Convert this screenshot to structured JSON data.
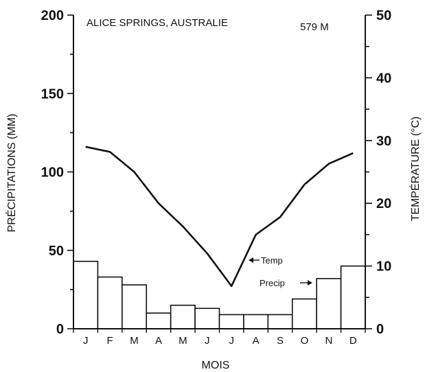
{
  "chart_data": {
    "type": "bar",
    "title": "ALICE SPRINGS, AUSTRALIE",
    "altitude": "579 M",
    "xlabel": "MOIS",
    "ylabel_left": "PRÉCIPITATIONS (MM)",
    "ylabel_right": "TEMPÉRATURE (°C)",
    "categories": [
      "J",
      "F",
      "M",
      "A",
      "M",
      "J",
      "J",
      "A",
      "S",
      "O",
      "N",
      "D"
    ],
    "ylim_left": [
      0,
      200
    ],
    "ylim_right": [
      0,
      50
    ],
    "yticks_left": [
      0,
      50,
      100,
      150,
      200
    ],
    "yticks_right": [
      0,
      10,
      20,
      30,
      40,
      50
    ],
    "series": [
      {
        "name": "Precip",
        "type": "bar",
        "axis": "left",
        "values": [
          43,
          33,
          28,
          10,
          15,
          13,
          9,
          9,
          9,
          19,
          32,
          40
        ]
      },
      {
        "name": "Temp",
        "type": "line",
        "axis": "right",
        "values": [
          29,
          28.2,
          25,
          20,
          16.3,
          12,
          6.8,
          15,
          17.8,
          23,
          26.3,
          28
        ]
      }
    ],
    "annotations": [
      {
        "text": "Temp",
        "arrow": "left",
        "points_to": "Temp"
      },
      {
        "text": "Precip",
        "arrow": "right",
        "points_to": "Precip"
      }
    ],
    "grid": false
  }
}
